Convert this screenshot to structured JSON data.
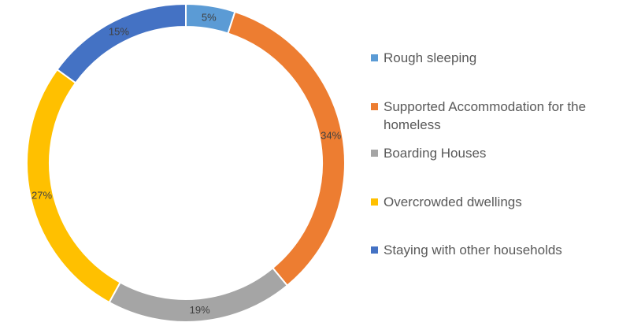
{
  "chart_data": {
    "type": "pie",
    "donut": true,
    "categories": [
      "Rough sleeping",
      "Supported Accommodation for the homeless",
      "Boarding Houses",
      "Overcrowded dwellings",
      "Staying with other households"
    ],
    "values": [
      5,
      34,
      19,
      27,
      15
    ],
    "data_labels": [
      "5%",
      "34%",
      "19%",
      "27%",
      "15%"
    ],
    "colors": [
      "#5b9bd5",
      "#ed7d31",
      "#a5a5a5",
      "#ffc000",
      "#4472c4"
    ],
    "legend_position": "right"
  }
}
